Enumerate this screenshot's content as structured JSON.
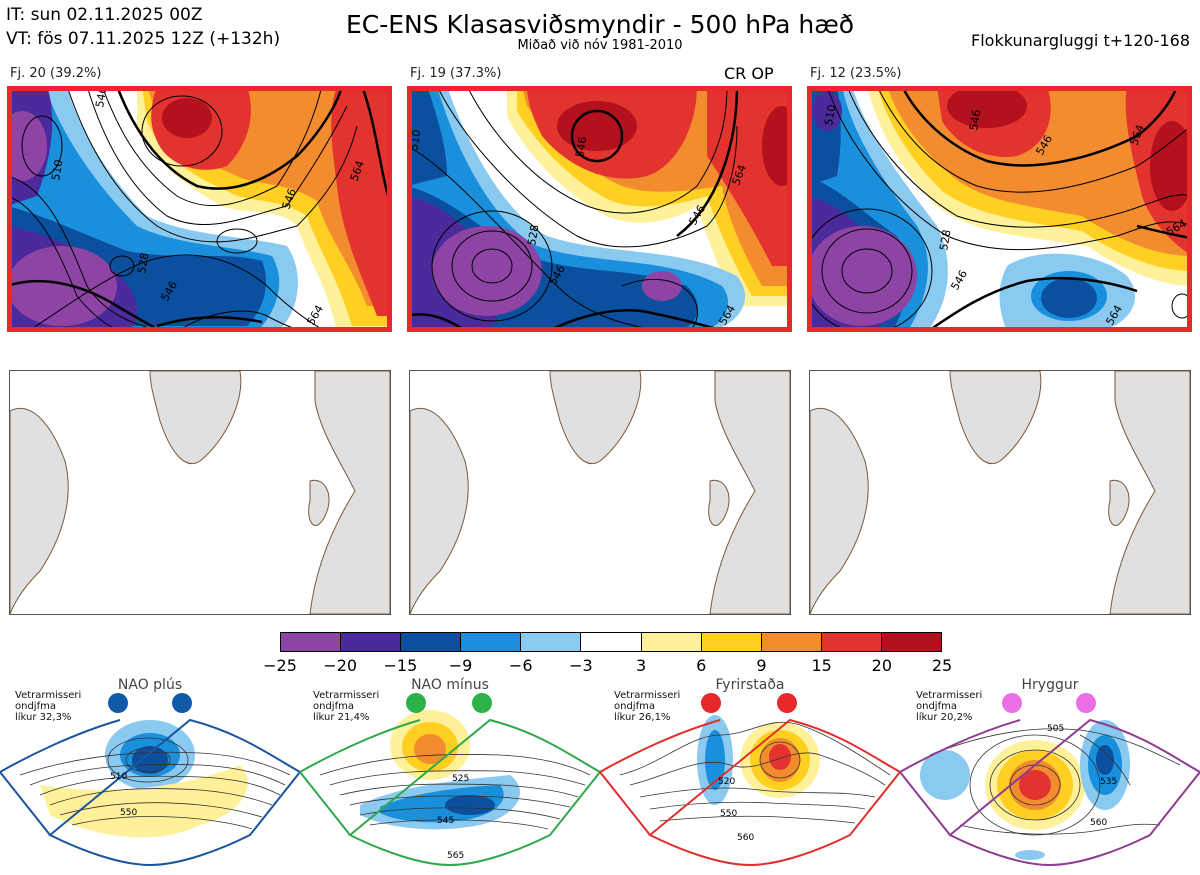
{
  "header": {
    "it": "IT: sun 02.11.2025 00Z",
    "vt": "VT: fös 07.11.2025 12Z  (+132h)",
    "title": "EC-ENS Klasasviðsmyndir - 500 hPa hæð",
    "subtitle": "Miðað við nóv 1981-2010",
    "window": "Flokkunargluggi t+120-168"
  },
  "clusters": [
    {
      "label": "Fj. 20 (39.2%)",
      "badge": "",
      "contours": [
        "546",
        "510",
        "528",
        "546",
        "564",
        "564",
        "546"
      ]
    },
    {
      "label": "Fj. 19 (37.3%)",
      "badge": "CR OP",
      "contours": [
        "546",
        "510",
        "528",
        "546",
        "564",
        "564",
        "546"
      ]
    },
    {
      "label": "Fj. 12 (23.5%)",
      "badge": "",
      "contours": [
        "546",
        "510",
        "528",
        "546",
        "564",
        "564",
        "546",
        "564"
      ]
    }
  ],
  "colorbar": {
    "colors": [
      "#8e44a5",
      "#4b2a9c",
      "#0b4f9f",
      "#1a8fdb",
      "#8ac9f0",
      "#ffffff",
      "#fff19a",
      "#ffcf21",
      "#f38b2f",
      "#e3332f",
      "#b3111d"
    ],
    "ticks": [
      "−25",
      "−20",
      "−15",
      "−9",
      "−6",
      "−3",
      "3",
      "6",
      "9",
      "15",
      "20",
      "25"
    ]
  },
  "regimes": [
    {
      "name": "NAO plús",
      "note": "Vetrarmisseri\nondjfma\nlíkur 32,3%",
      "dot_color": "#0f5ba8",
      "border": "#1a55a0",
      "contours": [
        "510",
        "550"
      ]
    },
    {
      "name": "NAO mínus",
      "note": "Vetrarmisseri\nondjfma\nlíkur 21,4%",
      "dot_color": "#2bb34a",
      "border": "#2fa84b",
      "contours": [
        "525",
        "545",
        "565"
      ]
    },
    {
      "name": "Fyrirstaða",
      "note": "Vetrarmisseri\nondjfma\nlíkur 26,1%",
      "dot_color": "#e8282a",
      "border": "#e0302e",
      "contours": [
        "520",
        "550",
        "560"
      ]
    },
    {
      "name": "Hryggur",
      "note": "Vetrarmisseri\nondjfma\nlíkur 20,2%",
      "dot_color": "#ec6ee6",
      "border": "#8e3c92",
      "contours": [
        "505",
        "535",
        "560"
      ]
    }
  ]
}
